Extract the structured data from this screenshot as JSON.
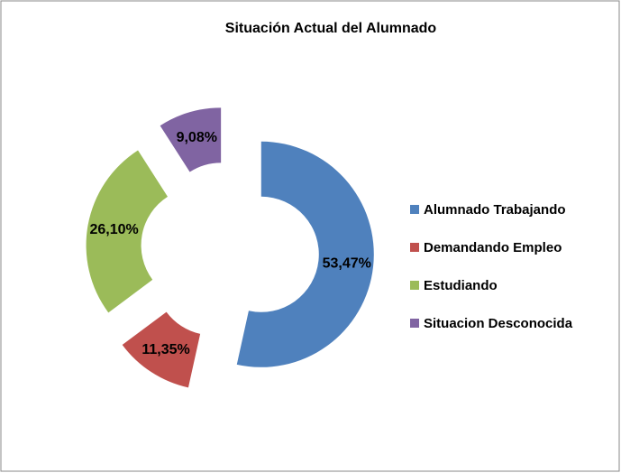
{
  "chart_data": {
    "type": "doughnut",
    "title": "Situación Actual del Alumnado",
    "categories": [
      "Alumnado Trabajando",
      "Demandando Empleo",
      "Estudiando",
      "Situacion Desconocida"
    ],
    "values": [
      53.47,
      11.35,
      26.1,
      9.08
    ],
    "value_labels": [
      "53,47%",
      "11,35%",
      "26,10%",
      "9,08%"
    ],
    "colors": [
      "#4f81bd",
      "#c0504d",
      "#9bbb59",
      "#8064a2"
    ],
    "legend": "right"
  }
}
